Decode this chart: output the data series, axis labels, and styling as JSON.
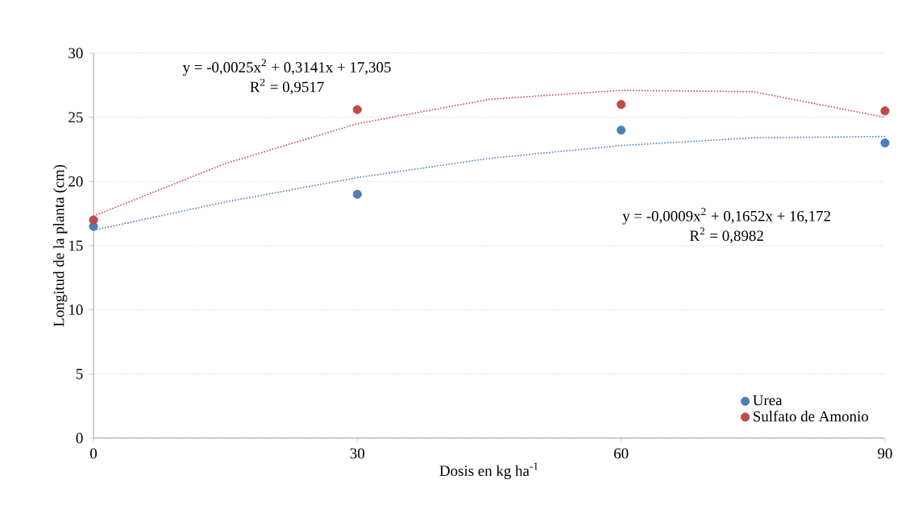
{
  "chart_data": {
    "type": "scatter",
    "xlabel": "Dosis en kg ha$^{-1}$",
    "ylabel": "Longitud de la  planta (cm)",
    "x": [
      0,
      30,
      60,
      90
    ],
    "series": [
      {
        "name": "Urea",
        "color": "#4a7ebb",
        "values": [
          16.5,
          19,
          24,
          23
        ],
        "marker": "circle"
      },
      {
        "name": "Sulfato de Amonio",
        "color": "#be4b48",
        "values": [
          17,
          25.6,
          26,
          25.5
        ],
        "marker": "circle"
      },
      {
        "type": "line",
        "color": "#4a7ebb",
        "x": [
          0,
          15,
          30,
          45,
          60,
          75,
          90
        ],
        "values": [
          16.2,
          18.4,
          20.3,
          21.8,
          22.8,
          23.4,
          23.5
        ],
        "line_style": "dotted",
        "marker": "none"
      },
      {
        "type": "line",
        "color": "#be4b48",
        "x": [
          0,
          15,
          30,
          45,
          60,
          75,
          90
        ],
        "values": [
          17.3,
          21.4,
          24.5,
          26.4,
          27.1,
          27,
          25
        ],
        "line_style": "dotted",
        "marker": "none"
      }
    ],
    "annotations": [
      "y = -0,0025x$^{2}$  + 0,3141x  + 17,305",
      "R$^{2}$ = 0,9517",
      "y = -0,0009x$^{2}$  + 0,1652x  + 16,172",
      "R$^{2}$ = 0,8982"
    ],
    "xlim": [
      0,
      90
    ],
    "xticks": [
      0,
      30,
      60,
      90
    ],
    "ylim": [
      0,
      30
    ],
    "yticks": [
      0,
      5,
      10,
      15,
      20,
      25,
      30
    ],
    "grid": "y",
    "legend": "bottom right"
  }
}
